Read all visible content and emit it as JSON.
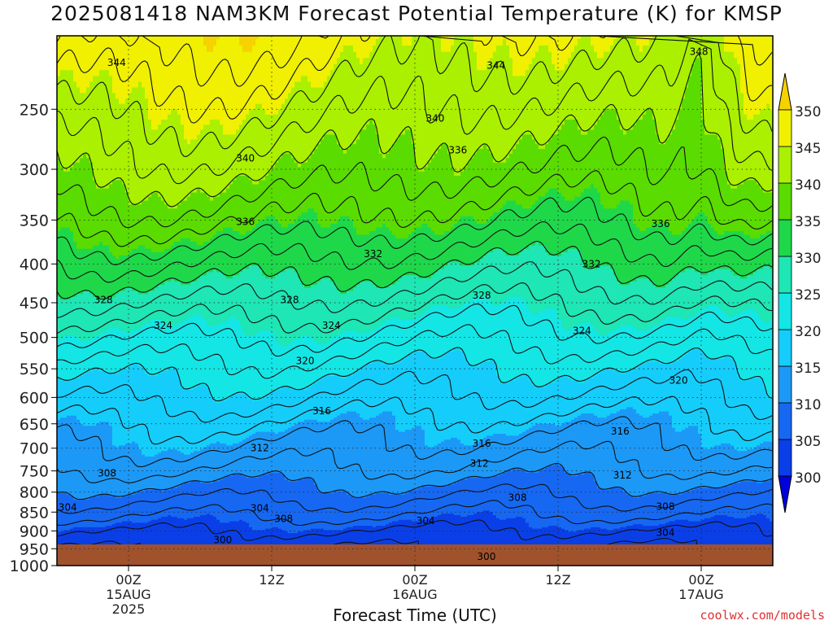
{
  "page": {
    "title": "2025081418 NAM3KM Forecast Potential Temperature (K) for KMSP",
    "credit": "coolwx.com/models"
  },
  "chart_data": {
    "type": "heatmap",
    "title": "2025081418 NAM3KM Forecast Potential Temperature (K) for KMSP",
    "xlabel": "Forecast Time (UTC)",
    "ylabel": "",
    "y_axis": {
      "scale": "log-pressure",
      "inverted": true,
      "range": [
        1000,
        200
      ],
      "ticks": [
        250,
        300,
        350,
        400,
        450,
        500,
        550,
        600,
        650,
        700,
        750,
        800,
        850,
        900,
        950,
        1000
      ]
    },
    "x_axis": {
      "range_hours": [
        0,
        60
      ],
      "ticks": [
        {
          "hour": 6,
          "lines": [
            "00Z",
            "15AUG",
            "2025"
          ]
        },
        {
          "hour": 18,
          "lines": [
            "12Z"
          ]
        },
        {
          "hour": 30,
          "lines": [
            "00Z",
            "16AUG"
          ]
        },
        {
          "hour": 42,
          "lines": [
            "12Z"
          ]
        },
        {
          "hour": 54,
          "lines": [
            "00Z",
            "17AUG"
          ]
        }
      ]
    },
    "grid": true,
    "colorbar": {
      "levels": [
        300,
        305,
        310,
        315,
        320,
        325,
        330,
        335,
        340,
        345,
        350
      ],
      "labels": [
        "300",
        "305",
        "310",
        "315",
        "320",
        "325",
        "330",
        "335",
        "340",
        "345",
        "350"
      ],
      "colors": [
        "#0000dc",
        "#0a3fe8",
        "#1668f2",
        "#1c99f7",
        "#15cdfb",
        "#14e6e6",
        "#1ee6b4",
        "#1ed84a",
        "#5adc00",
        "#aaf000",
        "#f0f000",
        "#f5d200"
      ],
      "extend": "both"
    },
    "theta_profile": {
      "pressure_hPa": [
        1000,
        950,
        900,
        850,
        800,
        750,
        700,
        650,
        600,
        550,
        500,
        450,
        400,
        350,
        300,
        250,
        200
      ],
      "theta_K": [
        301,
        302,
        304,
        306.5,
        309,
        311.5,
        313.5,
        315.5,
        318,
        320.5,
        323.5,
        327,
        331,
        335.5,
        339.5,
        343,
        347
      ]
    },
    "contour_interval_K": 2,
    "contour_labels": [
      {
        "value": "344",
        "hour": 5.0,
        "p": 217
      },
      {
        "value": "344",
        "hour": 36.8,
        "p": 219
      },
      {
        "value": "348",
        "hour": 53.8,
        "p": 210
      },
      {
        "value": "340",
        "hour": 31.7,
        "p": 257
      },
      {
        "value": "340",
        "hour": 15.8,
        "p": 290
      },
      {
        "value": "336",
        "hour": 33.6,
        "p": 283
      },
      {
        "value": "336",
        "hour": 15.8,
        "p": 352
      },
      {
        "value": "336",
        "hour": 50.6,
        "p": 354
      },
      {
        "value": "332",
        "hour": 26.5,
        "p": 388
      },
      {
        "value": "332",
        "hour": 44.8,
        "p": 400
      },
      {
        "value": "328",
        "hour": 3.9,
        "p": 446
      },
      {
        "value": "328",
        "hour": 19.5,
        "p": 446
      },
      {
        "value": "328",
        "hour": 35.6,
        "p": 440
      },
      {
        "value": "324",
        "hour": 8.9,
        "p": 482
      },
      {
        "value": "324",
        "hour": 23.0,
        "p": 482
      },
      {
        "value": "324",
        "hour": 44.0,
        "p": 490
      },
      {
        "value": "320",
        "hour": 20.8,
        "p": 537
      },
      {
        "value": "320",
        "hour": 52.1,
        "p": 570
      },
      {
        "value": "316",
        "hour": 22.2,
        "p": 625
      },
      {
        "value": "316",
        "hour": 35.6,
        "p": 690
      },
      {
        "value": "316",
        "hour": 47.2,
        "p": 665
      },
      {
        "value": "312",
        "hour": 17.0,
        "p": 700
      },
      {
        "value": "312",
        "hour": 35.4,
        "p": 733
      },
      {
        "value": "312",
        "hour": 47.4,
        "p": 760
      },
      {
        "value": "308",
        "hour": 4.2,
        "p": 755
      },
      {
        "value": "308",
        "hour": 38.6,
        "p": 813
      },
      {
        "value": "308",
        "hour": 51.0,
        "p": 836
      },
      {
        "value": "308",
        "hour": 19.0,
        "p": 867
      },
      {
        "value": "304",
        "hour": 0.9,
        "p": 838
      },
      {
        "value": "304",
        "hour": 17.0,
        "p": 840
      },
      {
        "value": "304",
        "hour": 30.9,
        "p": 873
      },
      {
        "value": "304",
        "hour": 51.0,
        "p": 905
      },
      {
        "value": "300",
        "hour": 13.9,
        "p": 925
      },
      {
        "value": "300",
        "hour": 36.0,
        "p": 973
      }
    ]
  }
}
